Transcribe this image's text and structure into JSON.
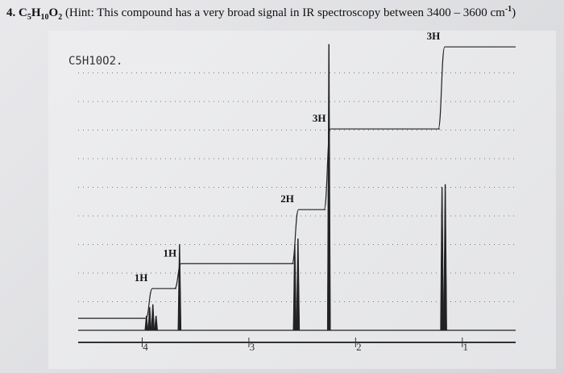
{
  "chart_data": {
    "type": "nmr",
    "title_parts": [
      "4. C",
      "5",
      "H",
      "10",
      "O",
      "2",
      " (Hint: This compound has a very broad signal in IR spectroscopy between 3400 – 3600 cm",
      "-1",
      ")"
    ],
    "annotation": "C5H10O2.",
    "xlim": [
      4.6,
      0.5
    ],
    "xticks": [
      4,
      3,
      2,
      1
    ],
    "ylim": [
      0,
      100
    ],
    "ygrid": [
      10,
      20,
      30,
      40,
      50,
      60,
      70,
      80,
      90
    ],
    "color": "#222222",
    "peaks": {
      "x": [
        3.96,
        3.93,
        3.9,
        3.87,
        3.65,
        2.57,
        2.54,
        2.25,
        1.19,
        1.16
      ],
      "values": [
        5,
        8,
        9,
        5,
        30,
        30,
        32,
        100,
        50,
        51
      ]
    },
    "integrals": {
      "x": [
        3.92,
        3.65,
        2.55,
        2.25,
        1.18
      ],
      "labels": [
        "1H",
        "1H",
        "2H",
        "3H",
        "3H"
      ],
      "steps": [
        10.4,
        8.7,
        18.9,
        28.2,
        28.7
      ],
      "baseline": 4.2
    }
  }
}
